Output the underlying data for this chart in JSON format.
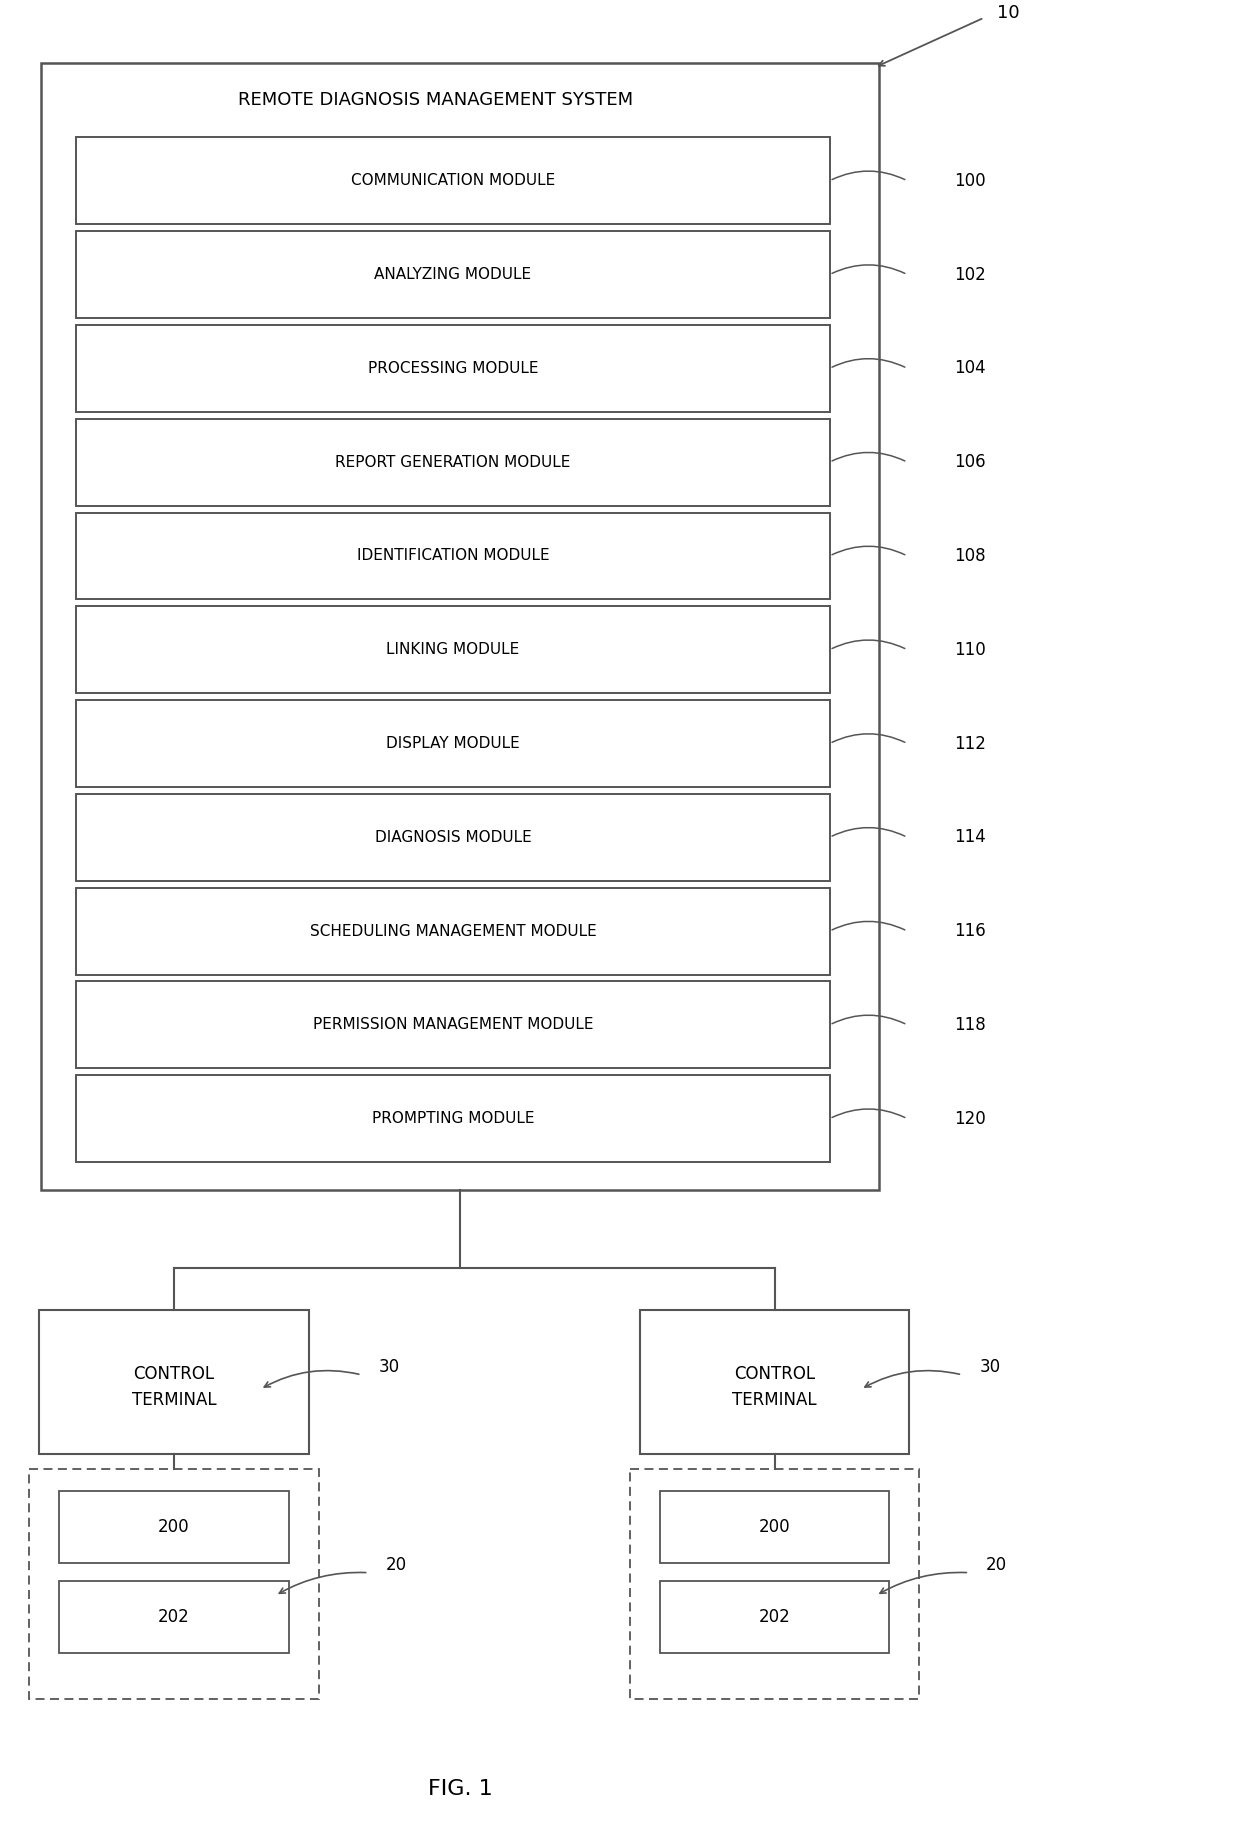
{
  "title": "FIG. 1",
  "bg_color": "#ffffff",
  "outer_box": {
    "label": "REMOTE DIAGNOSIS MANAGEMENT SYSTEM",
    "ref": "10"
  },
  "modules": [
    {
      "label": "COMMUNICATION MODULE",
      "ref": "100"
    },
    {
      "label": "ANALYZING MODULE",
      "ref": "102"
    },
    {
      "label": "PROCESSING MODULE",
      "ref": "104"
    },
    {
      "label": "REPORT GENERATION MODULE",
      "ref": "106"
    },
    {
      "label": "IDENTIFICATION MODULE",
      "ref": "108"
    },
    {
      "label": "LINKING MODULE",
      "ref": "110"
    },
    {
      "label": "DISPLAY MODULE",
      "ref": "112"
    },
    {
      "label": "DIAGNOSIS MODULE",
      "ref": "114"
    },
    {
      "label": "SCHEDULING MANAGEMENT MODULE",
      "ref": "116"
    },
    {
      "label": "PERMISSION MANAGEMENT MODULE",
      "ref": "118"
    },
    {
      "label": "PROMPTING MODULE",
      "ref": "120"
    }
  ],
  "line_color": "#555555",
  "box_edge_color": "#555555",
  "text_color": "#000000"
}
